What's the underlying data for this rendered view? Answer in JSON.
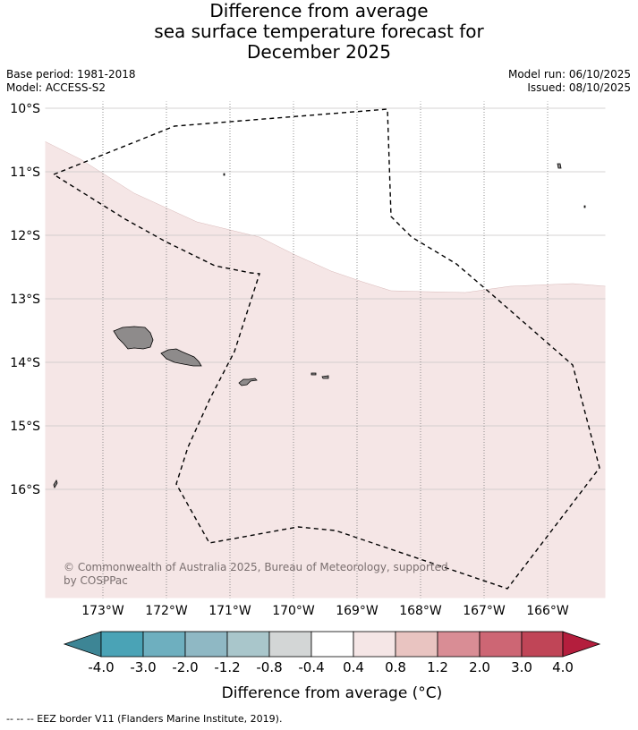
{
  "title": {
    "line1": "Difference from average",
    "line2": "sea surface temperature forecast for",
    "line3": "December 2025"
  },
  "meta": {
    "base_period": "Base period: 1981-2018",
    "model": "Model: ACCESS-S2",
    "model_run": "Model run: 06/10/2025",
    "issued": "Issued: 08/10/2025"
  },
  "map": {
    "lat_labels": [
      "10°S",
      "11°S",
      "12°S",
      "13°S",
      "14°S",
      "15°S",
      "16°S"
    ],
    "lon_labels": [
      "173°W",
      "172°W",
      "171°W",
      "170°W",
      "169°W",
      "168°W",
      "167°W",
      "166°W"
    ],
    "copyright_line1": "© Commonwealth of Australia 2025, Bureau of Meteorology, supported",
    "copyright_line2": "by COSPPac",
    "anomaly_fill_color": "#f5e6e6",
    "land_color": "#8e8b8b",
    "eez_color": "#000000"
  },
  "colorbar": {
    "tick_labels": [
      "-4.0",
      "-3.0",
      "-2.0",
      "-1.2",
      "-0.8",
      "-0.4",
      "0.4",
      "0.8",
      "1.2",
      "2.0",
      "3.0",
      "4.0"
    ],
    "colors": [
      "#3d8595",
      "#4aa3b6",
      "#6eafbf",
      "#8fb8c4",
      "#a9c6cb",
      "#d3d6d6",
      "#ffffff",
      "#f5e6e6",
      "#e9c4c1",
      "#d98d95",
      "#cd6674",
      "#c04557",
      "#b41e3d"
    ],
    "label": "Difference from average (°C)"
  },
  "footer": {
    "legend": "--  --  -- EEZ border V11 (Flanders Marine Institute, 2019)."
  }
}
